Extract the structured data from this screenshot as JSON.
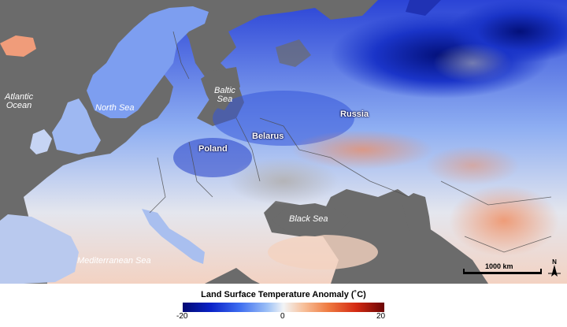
{
  "map": {
    "labels": {
      "atlantic_ocean": "Atlantic\nOcean",
      "north_sea": "North Sea",
      "baltic_sea": "Baltic\nSea",
      "black_sea": "Black Sea",
      "mediterranean_sea": "Mediterranean Sea",
      "russia": "Russia",
      "belarus": "Belarus",
      "poland": "Poland"
    },
    "scale_bar": "1000 km",
    "north_arrow_icon": "north-arrow-icon",
    "colors": {
      "ocean": "#6b6b6b",
      "cold_extreme": "#020a72",
      "neutral": "#f2f4f6",
      "warm_extreme": "#6a0404"
    }
  },
  "legend": {
    "title": "Land Surface Temperature Anomaly (˚C)",
    "min": "-20",
    "mid": "0",
    "max": "20"
  }
}
